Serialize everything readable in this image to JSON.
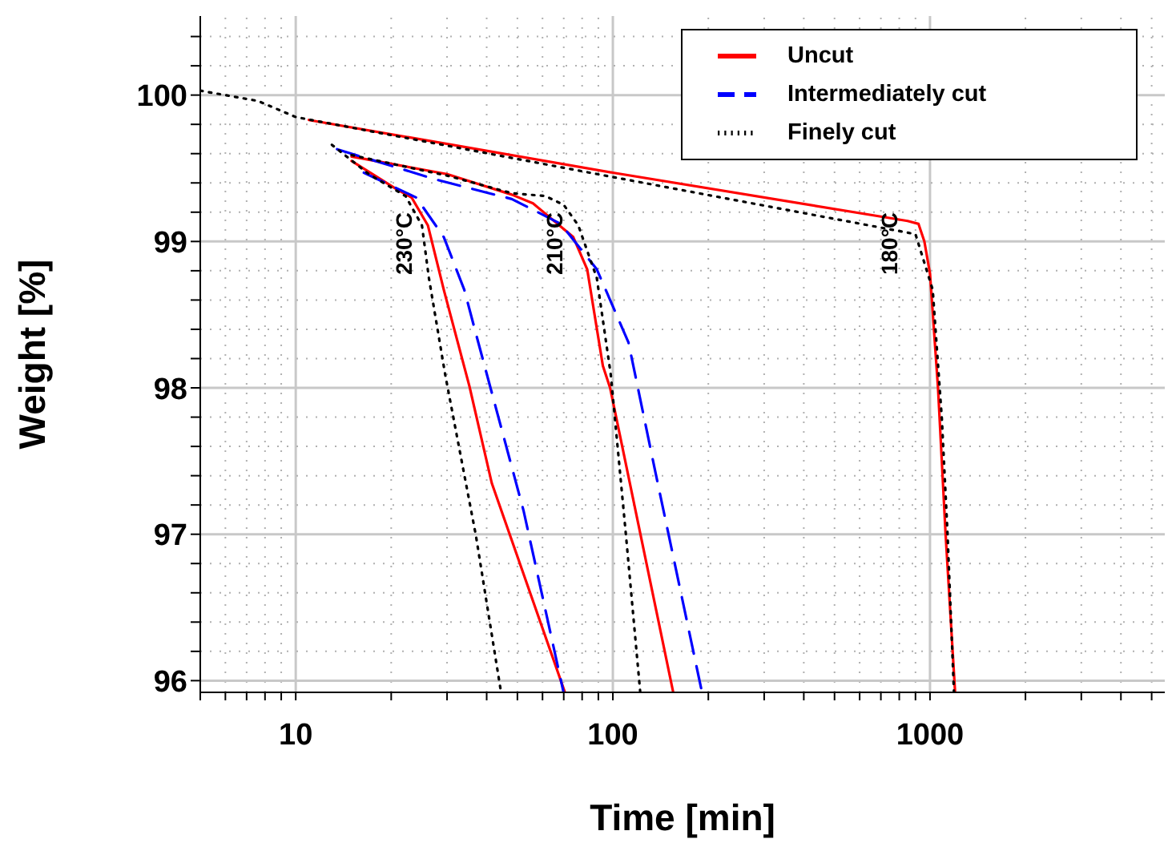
{
  "chart_data": {
    "type": "line",
    "xlabel": "Time [min]",
    "ylabel": "Weight [%]",
    "log": "x",
    "grid": true,
    "legend": "top right",
    "marker": "none",
    "xlim": [
      5,
      5500
    ],
    "xticks": [
      {
        "value": 5,
        "label": null
      },
      {
        "value": 6,
        "label": null
      },
      {
        "value": 7,
        "label": null
      },
      {
        "value": 8,
        "label": null
      },
      {
        "value": 9,
        "label": null
      },
      10,
      {
        "value": 20,
        "label": null
      },
      {
        "value": 30,
        "label": null
      },
      {
        "value": 40,
        "label": null
      },
      {
        "value": 50,
        "label": null
      },
      {
        "value": 60,
        "label": null
      },
      {
        "value": 70,
        "label": null
      },
      {
        "value": 80,
        "label": null
      },
      {
        "value": 90,
        "label": null
      },
      100,
      {
        "value": 200,
        "label": null
      },
      {
        "value": 300,
        "label": null
      },
      {
        "value": 400,
        "label": null
      },
      {
        "value": 500,
        "label": null
      },
      {
        "value": 600,
        "label": null
      },
      {
        "value": 700,
        "label": null
      },
      {
        "value": 800,
        "label": null
      },
      {
        "value": 900,
        "label": null
      },
      1000,
      {
        "value": 2000,
        "label": null
      },
      {
        "value": 3000,
        "label": null
      },
      {
        "value": 4000,
        "label": null
      },
      {
        "value": 5000,
        "label": null
      }
    ],
    "ylim": [
      95.92,
      100.54
    ],
    "yticks": [
      96,
      {
        "value": 96.2,
        "label": null
      },
      {
        "value": 96.4,
        "label": null
      },
      {
        "value": 96.6,
        "label": null
      },
      {
        "value": 96.8,
        "label": null
      },
      97,
      {
        "value": 97.2,
        "label": null
      },
      {
        "value": 97.4,
        "label": null
      },
      {
        "value": 97.6,
        "label": null
      },
      {
        "value": 97.8,
        "label": null
      },
      98,
      {
        "value": 98.2,
        "label": null
      },
      {
        "value": 98.4,
        "label": null
      },
      {
        "value": 98.6,
        "label": null
      },
      {
        "value": 98.8,
        "label": null
      },
      99,
      {
        "value": 99.2,
        "label": null
      },
      {
        "value": 99.4,
        "label": null
      },
      {
        "value": 99.6,
        "label": null
      },
      {
        "value": 99.8,
        "label": null
      },
      100,
      {
        "value": 100.2,
        "label": null
      },
      {
        "value": 100.4,
        "label": null
      }
    ],
    "series": [
      {
        "name": "Uncut",
        "color": "#ff0000",
        "line_style": "solid",
        "x": [
          15,
          30,
          48,
          56,
          75,
          83,
          93,
          98,
          155
        ],
        "values": [
          99.58,
          99.46,
          99.32,
          99.26,
          99.03,
          98.81,
          98.15,
          98.0,
          95.92
        ]
      },
      {
        "name": "Intermediately cut",
        "color": "#0000ff",
        "line_style": "dashed",
        "x": [
          13.5,
          28,
          48,
          68.5,
          89,
          112,
          136,
          191
        ],
        "values": [
          99.63,
          99.42,
          99.29,
          99.12,
          98.81,
          98.31,
          97.43,
          95.92
        ]
      },
      {
        "name": "Finely cut",
        "color": "#000000",
        "line_style": "dotted",
        "x": [
          15,
          30,
          48,
          61.3,
          70,
          77.8,
          89,
          98.5,
          110,
          122
        ],
        "values": [
          99.59,
          99.45,
          99.33,
          99.31,
          99.25,
          99.11,
          98.75,
          98.09,
          96.99,
          95.92
        ]
      },
      {
        "color": "#ff0000",
        "line_style": "solid",
        "x": [
          15,
          20.7,
          23.2,
          26.1,
          29.3,
          35.3,
          41.5,
          70.6
        ],
        "values": [
          99.55,
          99.36,
          99.3,
          99.11,
          98.67,
          98.01,
          97.35,
          95.92
        ]
      },
      {
        "color": "#0000ff",
        "line_style": "dashed",
        "x": [
          16.4,
          24,
          29.3,
          34,
          37,
          52.3,
          69.9
        ],
        "values": [
          99.47,
          99.3,
          99.03,
          98.67,
          98.37,
          97.16,
          95.92
        ]
      },
      {
        "color": "#000000",
        "line_style": "dotted",
        "x": [
          13,
          17,
          22.2,
          25,
          26.3,
          29.6,
          37,
          44.4
        ],
        "values": [
          99.66,
          99.46,
          99.31,
          99.11,
          98.75,
          98.09,
          96.99,
          95.92
        ]
      },
      {
        "color": "#ff0000",
        "line_style": "solid",
        "x": [
          11,
          100,
          700,
          850,
          920,
          960,
          1000,
          1060,
          1120,
          1200
        ],
        "values": [
          99.83,
          99.47,
          99.17,
          99.14,
          99.12,
          99.0,
          98.78,
          98.0,
          97.0,
          95.92
        ]
      },
      {
        "color": "#000000",
        "line_style": "dotted",
        "x": [
          5,
          7.6,
          10,
          100,
          900,
          1020,
          1090,
          1135,
          1190
        ],
        "values": [
          100.03,
          99.96,
          99.85,
          99.44,
          99.05,
          98.67,
          97.79,
          97.02,
          95.92
        ]
      }
    ],
    "annotations": [
      "230°C",
      "210°C",
      "180°C"
    ]
  }
}
